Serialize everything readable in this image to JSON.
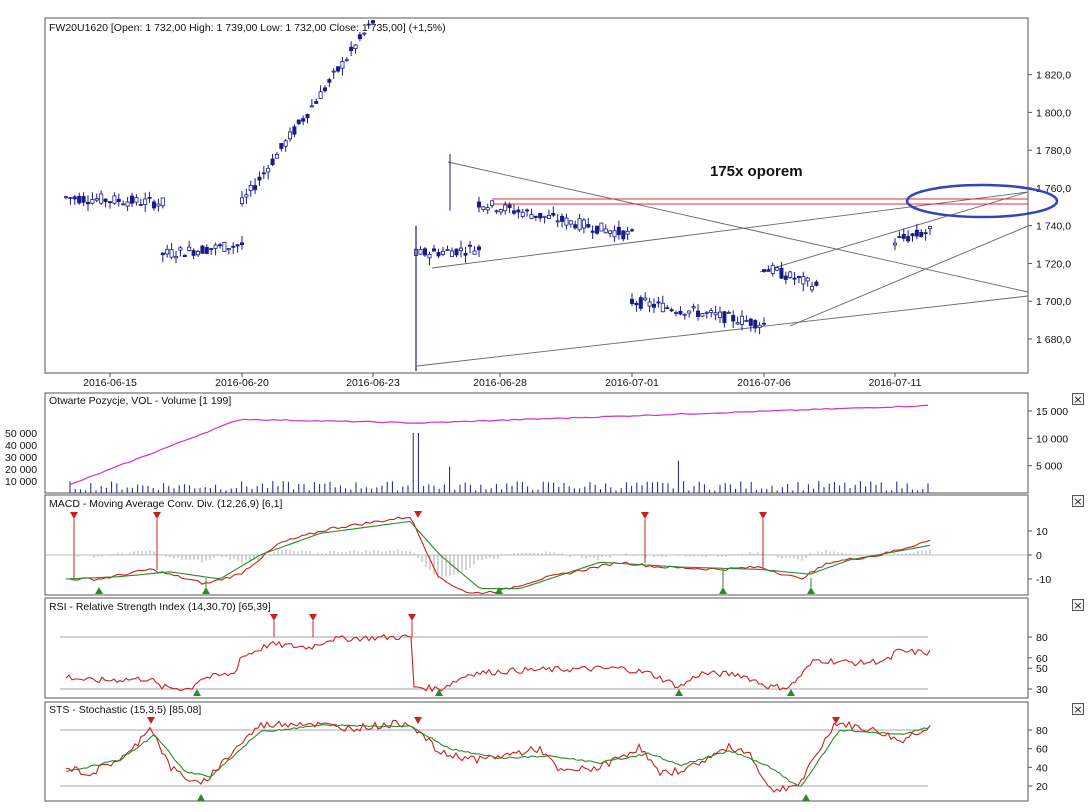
{
  "main_panel": {
    "header": "FW20U1620 [Open: 1 732,00  High: 1 739,00  Low: 1 732,00  Close: 1 735,00] (+1,5%)",
    "annotation": "175x oporem",
    "y_ticks": [
      "1 820,0",
      "1 800,0",
      "1 780,0",
      "1 760,0",
      "1 740,0",
      "1 720,0",
      "1 700,0",
      "1 680,0"
    ],
    "x_ticks": [
      "2016-06-15",
      "2016-06-20",
      "2016-06-23",
      "2016-06-28",
      "2016-07-01",
      "2016-07-06",
      "2016-07-11"
    ]
  },
  "volume_panel": {
    "header": "Otwarte Pozycje, VOL - Volume [1 199]",
    "left_ticks": [
      "50 000",
      "40 000",
      "30 000",
      "20 000",
      "10 000"
    ],
    "right_ticks": [
      "15 000",
      "10 000",
      "5 000"
    ]
  },
  "macd_panel": {
    "header": "MACD - Moving Average Conv. Div. (12,26,9) [6,1]",
    "ticks": [
      "10",
      "0",
      "-10"
    ]
  },
  "rsi_panel": {
    "header": "RSI - Relative Strength Index (14,30,70) [65,39]",
    "ticks": [
      "80",
      "60",
      "50",
      "30"
    ]
  },
  "sts_panel": {
    "header": "STS - Stochastic (15,3,5) [85,08]",
    "ticks": [
      "80",
      "60",
      "40",
      "20"
    ]
  },
  "close_glyph": "×",
  "colors": {
    "candle": "#1a1a8c",
    "support_resistance": "#e03030",
    "ellipse": "#3344bb",
    "open_interest": "#cc33cc",
    "signal_down": "#cc2020",
    "signal_up": "#2a8a2a",
    "rsi_line": "#cc2020",
    "macd_signal": "#2a8a2a"
  },
  "chart_data": {
    "type": "candlestick",
    "instrument": "FW20U1620",
    "last": {
      "open": 1732.0,
      "high": 1739.0,
      "low": 1732.0,
      "close": 1735.0,
      "change_pct": 1.5
    },
    "y_range": [
      1662,
      1850
    ],
    "segments": [
      {
        "from": "2016-06-13",
        "to": "2016-06-17",
        "start_close": 1755,
        "end_close": 1752
      },
      {
        "from": "2016-06-17",
        "to": "2016-06-20",
        "start_close": 1725,
        "end_close": 1730
      },
      {
        "from": "2016-06-20",
        "to": "2016-06-23",
        "start_close": 1752,
        "end_close": 1848
      },
      {
        "from": "2016-06-24",
        "to": "2016-06-27",
        "start_close": 1725,
        "end_close": 1728
      },
      {
        "from": "2016-06-27",
        "to": "2016-07-01",
        "start_close": 1752,
        "end_close": 1735
      },
      {
        "from": "2016-07-01",
        "to": "2016-07-06",
        "start_close": 1700,
        "end_close": 1688
      },
      {
        "from": "2016-07-06",
        "to": "2016-07-08",
        "start_close": 1718,
        "end_close": 1708
      },
      {
        "from": "2016-07-11",
        "to": "2016-07-12",
        "start_close": 1732,
        "end_close": 1737
      }
    ],
    "resistance_level": 1755,
    "volume_peak": 50000,
    "open_interest_last": 16000,
    "macd_last": 6.1,
    "rsi_last": 65.39,
    "stochastic_last": 85.08
  }
}
